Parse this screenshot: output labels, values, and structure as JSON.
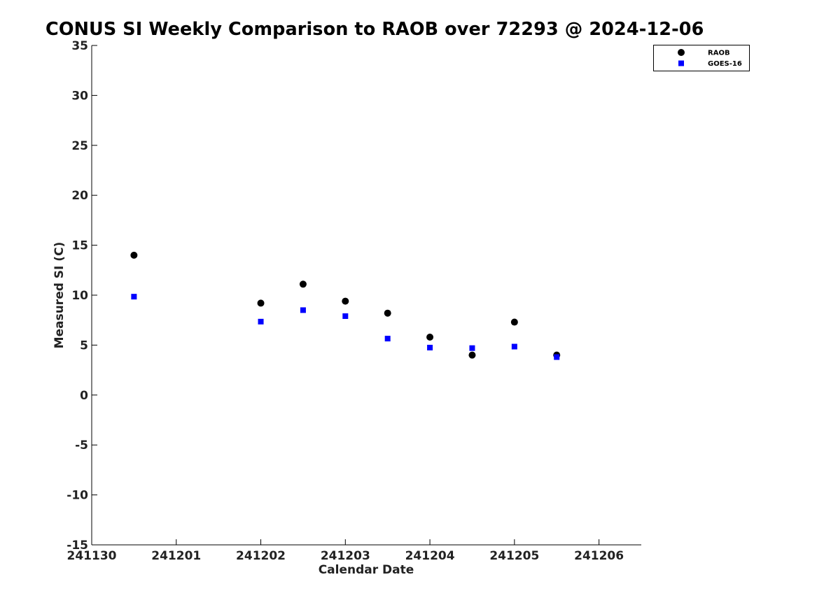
{
  "chart_data": {
    "type": "scatter",
    "title": "CONUS SI Weekly Comparison to RAOB over 72293 @ 2024-12-06",
    "xlabel": "Calendar Date",
    "ylabel": "Measured SI (C)",
    "xlim": [
      241130,
      241206.5
    ],
    "ylim": [
      -15,
      35
    ],
    "x_ticks": [
      {
        "value": 241130,
        "label": "241130"
      },
      {
        "value": 241201,
        "label": "241201"
      },
      {
        "value": 241202,
        "label": "241202"
      },
      {
        "value": 241203,
        "label": "241203"
      },
      {
        "value": 241204,
        "label": "241204"
      },
      {
        "value": 241205,
        "label": "241205"
      },
      {
        "value": 241206,
        "label": "241206"
      }
    ],
    "y_ticks": [
      -15,
      -10,
      -5,
      0,
      5,
      10,
      15,
      20,
      25,
      30,
      35
    ],
    "grid": false,
    "legend": "top-right",
    "series": [
      {
        "name": "RAOB",
        "marker": "circle",
        "color": "#000000",
        "x": [
          241130.5,
          241202,
          241202.5,
          241203,
          241203.5,
          241204,
          241204.5,
          241205,
          241205.5
        ],
        "y": [
          14.0,
          9.2,
          11.1,
          9.4,
          8.2,
          5.8,
          4.0,
          7.3,
          4.0
        ]
      },
      {
        "name": "GOES-16",
        "marker": "square",
        "color": "#0000ff",
        "x": [
          241130.5,
          241202,
          241202.5,
          241203,
          241203.5,
          241204,
          241204.5,
          241205,
          241205.5
        ],
        "y": [
          9.85,
          7.35,
          8.5,
          7.9,
          5.65,
          4.75,
          4.7,
          4.85,
          3.8
        ]
      }
    ]
  }
}
